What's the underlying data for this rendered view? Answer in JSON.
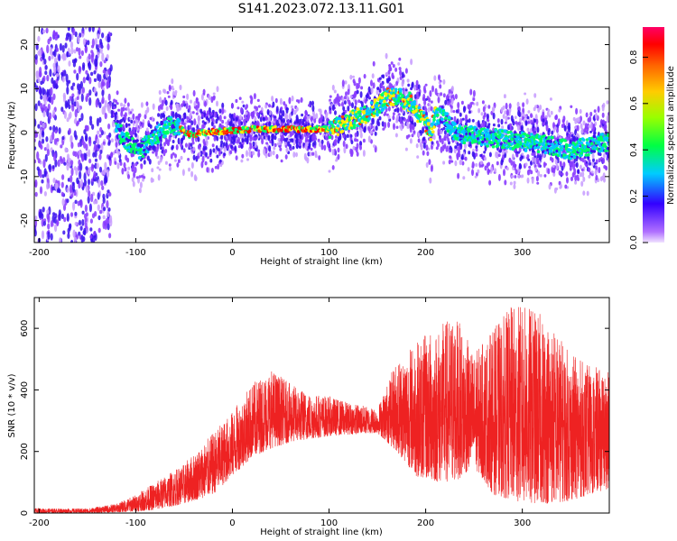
{
  "title": "S141.2023.072.13.11.G01",
  "colors": {
    "snr_line": "#ee2222",
    "axis": "#000000",
    "background": "#ffffff"
  },
  "chart_data": [
    {
      "type": "heatmap",
      "name": "spectrogram",
      "xlabel": "Height of straight line (km)",
      "ylabel": "Frequency (Hz)",
      "xlim": [
        -205,
        390
      ],
      "ylim": [
        -25,
        24
      ],
      "x_ticks": [
        "-200",
        "-100",
        "0",
        "100",
        "200",
        "300"
      ],
      "y_ticks": [
        "-20",
        "-10",
        "0",
        "10",
        "20"
      ],
      "colorbar": {
        "label": "Normalized spectral amplitude",
        "range": [
          0,
          0.93
        ],
        "ticks": [
          "0.0",
          "0.2",
          "0.4",
          "0.6",
          "0.8"
        ]
      },
      "ridge": {
        "x": [
          -125,
          -110,
          -95,
          -80,
          -65,
          -55,
          -45,
          -30,
          -10,
          0,
          20,
          50,
          80,
          100,
          110,
          120,
          130,
          140,
          150,
          160,
          170,
          180,
          185,
          190,
          200,
          205,
          210,
          220,
          230,
          260,
          300,
          330,
          350,
          370,
          390
        ],
        "f": [
          3,
          -2,
          -4,
          -1,
          2,
          1,
          -0.5,
          0,
          0.3,
          0.5,
          0.8,
          0.8,
          0.8,
          0.8,
          1.5,
          2.5,
          3.5,
          4.5,
          6,
          8,
          8.5,
          7,
          7,
          5,
          2,
          0,
          4,
          3,
          0,
          -1,
          -2,
          -3,
          -4,
          -3,
          -2
        ]
      }
    },
    {
      "type": "line",
      "name": "snr",
      "xlabel": "Height of straight line (km)",
      "ylabel": "SNR (10 * v/v)",
      "xlim": [
        -205,
        390
      ],
      "ylim": [
        0,
        700
      ],
      "x_ticks": [
        "-200",
        "-100",
        "0",
        "100",
        "200",
        "300"
      ],
      "y_ticks": [
        "0",
        "200",
        "400",
        "600"
      ],
      "envelope": {
        "x": [
          -205,
          -150,
          -120,
          -100,
          -80,
          -50,
          -20,
          0,
          20,
          40,
          60,
          80,
          100,
          120,
          150,
          170,
          190,
          210,
          230,
          250,
          270,
          290,
          310,
          330,
          350,
          370,
          390
        ],
        "low": [
          0,
          0,
          2,
          5,
          10,
          30,
          60,
          120,
          180,
          210,
          230,
          240,
          250,
          255,
          260,
          200,
          120,
          100,
          100,
          150,
          60,
          40,
          30,
          30,
          40,
          60,
          80
        ],
        "high": [
          15,
          15,
          30,
          60,
          100,
          160,
          260,
          330,
          420,
          470,
          420,
          390,
          380,
          360,
          340,
          500,
          560,
          600,
          650,
          520,
          600,
          680,
          670,
          620,
          520,
          480,
          460
        ]
      }
    }
  ]
}
